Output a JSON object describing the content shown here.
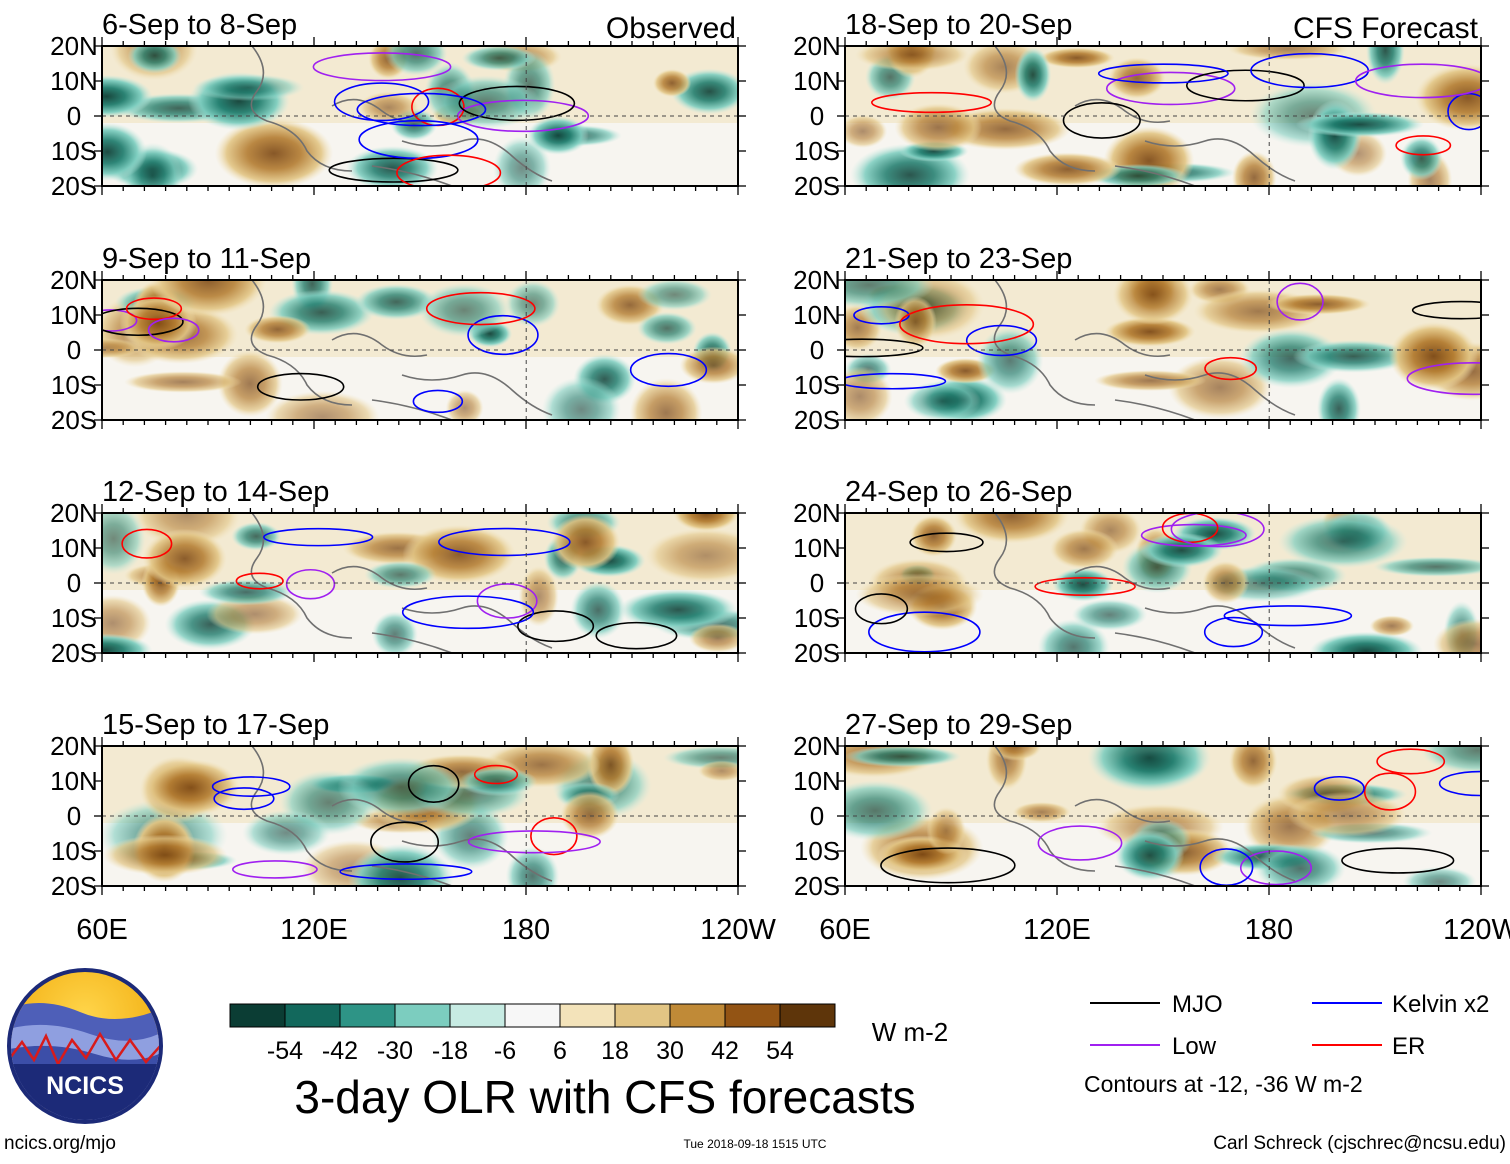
{
  "figure": {
    "title": "3-day OLR with CFS forecasts",
    "unit": "W m-2",
    "columns": [
      {
        "label": "Observed"
      },
      {
        "label": "CFS Forecast"
      }
    ],
    "lat_ticks": [
      "20N",
      "10N",
      "0",
      "10S",
      "20S"
    ],
    "lon_ticks": [
      "60E",
      "120E",
      "180",
      "120W"
    ],
    "website": "ncics.org/mjo",
    "timestamp": "Tue 2018-09-18 1515 UTC",
    "author": "Carl Schreck (cjschrec@ncsu.edu)",
    "logo_text": "NCICS",
    "contour_note": "Contours at -12, -36 W m-2"
  },
  "colorbar": {
    "tick_labels": [
      "-54",
      "-42",
      "-30",
      "-18",
      "-6",
      "6",
      "18",
      "30",
      "42",
      "54"
    ],
    "colors": [
      "#0b3d34",
      "#12685c",
      "#2e9486",
      "#7ccdbf",
      "#c7ebe3",
      "#f7f7f7",
      "#f3e3ba",
      "#e2c584",
      "#c08a37",
      "#935414",
      "#5e350a"
    ]
  },
  "legend": [
    {
      "label": "MJO",
      "color": "#000000"
    },
    {
      "label": "Kelvin x2",
      "color": "#0000ff"
    },
    {
      "label": "Low",
      "color": "#a020f0"
    },
    {
      "label": "ER",
      "color": "#ff0000"
    }
  ],
  "chart_data": {
    "type": "heatmap",
    "variable": "OLR anomaly (3-day mean)",
    "units": "W m-2",
    "contour_levels": [
      -12,
      -36
    ],
    "axes": {
      "lon_range": [
        "60E",
        "120W"
      ],
      "lat_range": [
        -20,
        20
      ]
    },
    "panels": [
      {
        "period": "6-Sep to 8-Sep",
        "source": "Observed"
      },
      {
        "period": "9-Sep to 11-Sep",
        "source": "Observed"
      },
      {
        "period": "12-Sep to 14-Sep",
        "source": "Observed"
      },
      {
        "period": "15-Sep to 17-Sep",
        "source": "Observed"
      },
      {
        "period": "18-Sep to 20-Sep",
        "source": "CFS Forecast"
      },
      {
        "period": "21-Sep to 23-Sep",
        "source": "CFS Forecast"
      },
      {
        "period": "24-Sep to 26-Sep",
        "source": "CFS Forecast"
      },
      {
        "period": "27-Sep to 29-Sep",
        "source": "CFS Forecast"
      }
    ]
  }
}
